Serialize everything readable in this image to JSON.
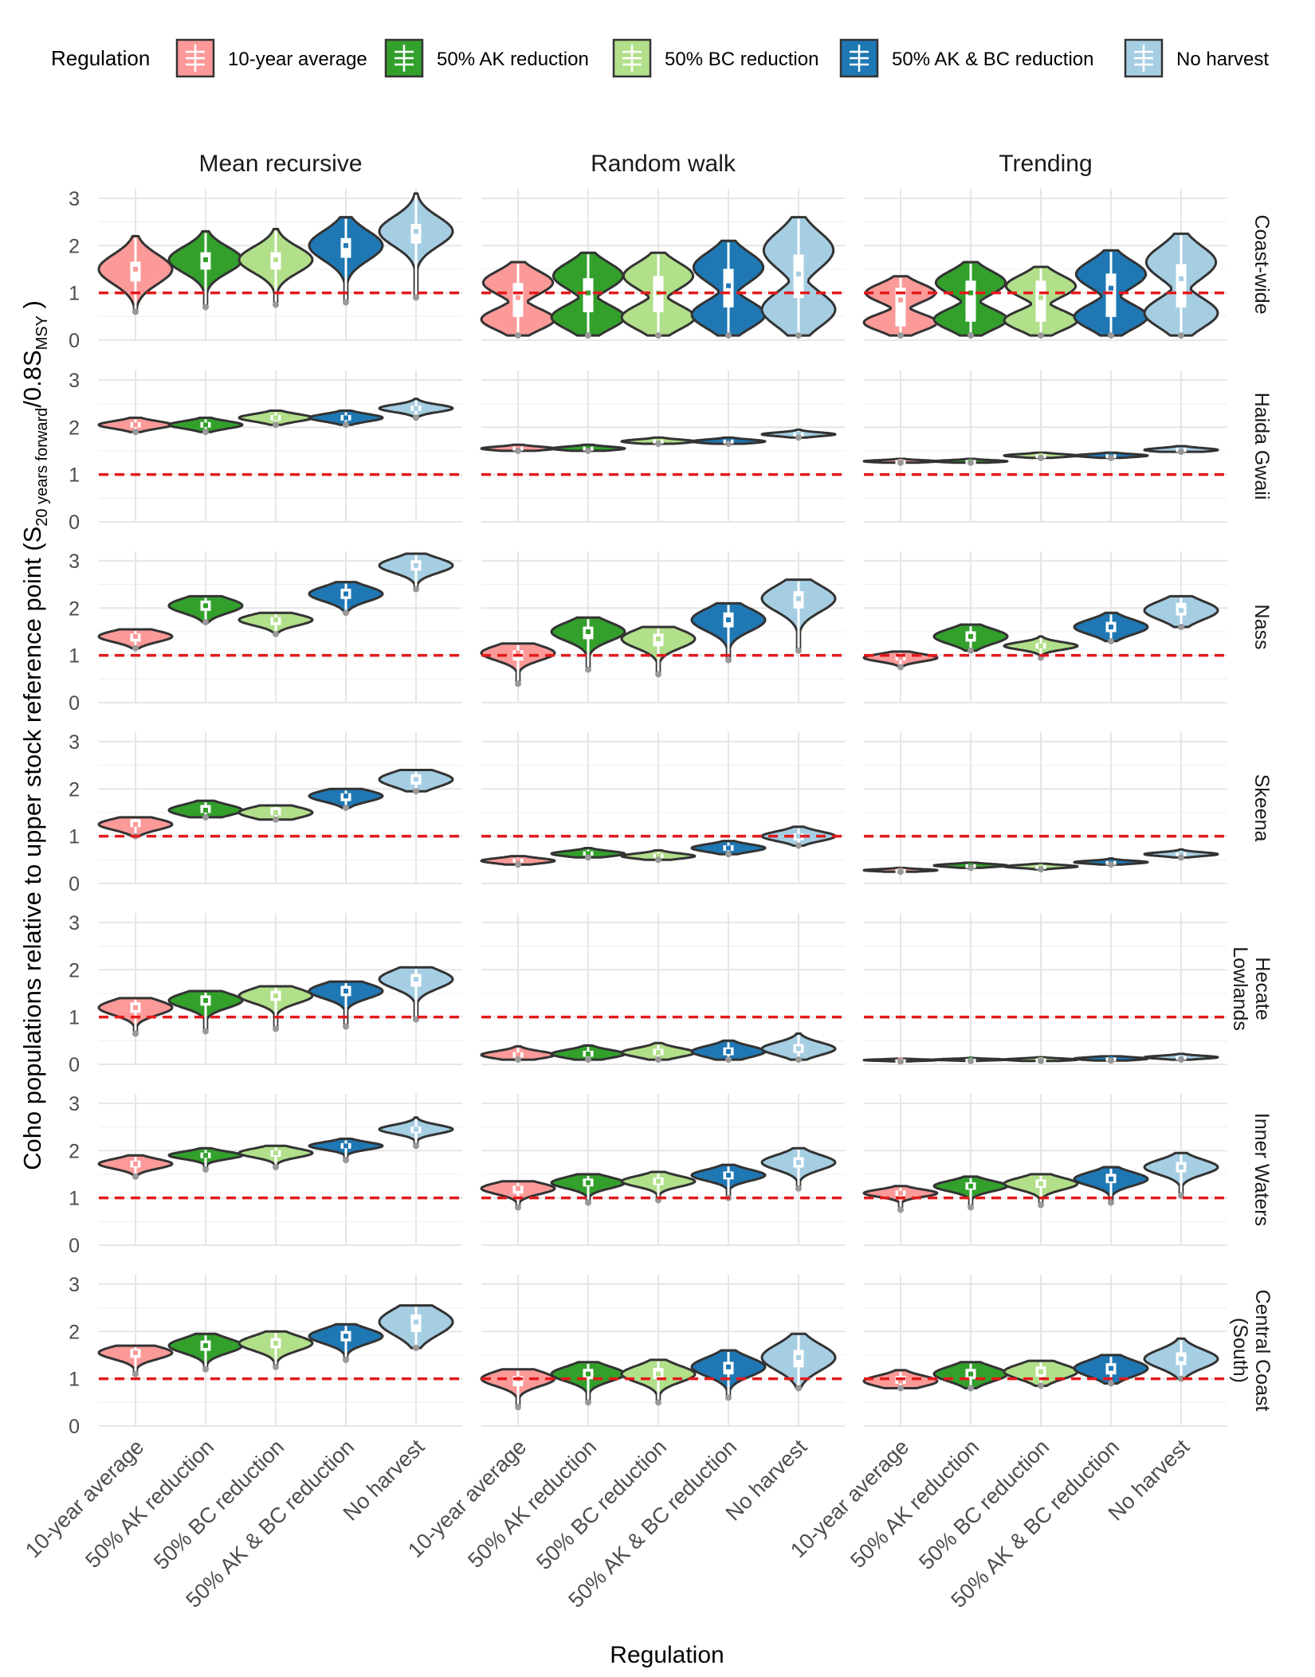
{
  "chart_data": {
    "type": "violin",
    "ylabel": "Coho populations relative to upper stock reference point (S",
    "ylabel_sub1": "20 years forward",
    "ylabel_mid": "/0.8S",
    "ylabel_sub2": "MSY",
    "ylabel_end": " )",
    "xlabel": "Regulation",
    "legend": {
      "title": "Regulation",
      "position": "top",
      "entries": [
        {
          "label": "10-year average",
          "color": "#FB9A99"
        },
        {
          "label": "50% AK reduction",
          "color": "#33A02C"
        },
        {
          "label": "50% BC reduction",
          "color": "#B2DF8A"
        },
        {
          "label": "50% AK & BC reduction",
          "color": "#1F78B4"
        },
        {
          "label": "No harvest",
          "color": "#A6CEE3"
        }
      ]
    },
    "categories": [
      "10-year average",
      "50% AK reduction",
      "50% BC reduction",
      "50% AK & BC reduction",
      "No harvest"
    ],
    "columns": [
      "Mean recursive",
      "Random walk",
      "Trending"
    ],
    "rows": [
      "Coast-wide",
      "Haida Gwaii",
      "Nass",
      "Skeena",
      "Hecate Lowlands",
      "Inner Waters",
      "Central Coast (South)"
    ],
    "row_labels": [
      [
        "Coast-wide"
      ],
      [
        "Haida Gwaii"
      ],
      [
        "Nass"
      ],
      [
        "Skeena"
      ],
      [
        "Hecate",
        "Lowlands"
      ],
      [
        "Inner Waters"
      ],
      [
        "Central Coast",
        "(South)"
      ]
    ],
    "y_ticks": [
      "0",
      "1",
      "2",
      "3"
    ],
    "ylim": [
      0,
      3.2
    ],
    "reference_line": 1,
    "reference_color": "#E31A1C",
    "grid": true,
    "violins_note": "each violin: min, q1, median, q3, max",
    "panels": [
      [
        [
          [
            0.6,
            1.25,
            1.5,
            1.65,
            2.2
          ],
          [
            0.7,
            1.5,
            1.7,
            1.85,
            2.3
          ],
          [
            0.75,
            1.5,
            1.7,
            1.85,
            2.35
          ],
          [
            0.8,
            1.75,
            2.0,
            2.15,
            2.6
          ],
          [
            0.9,
            2.05,
            2.3,
            2.45,
            3.1
          ]
        ],
        [
          [
            0.1,
            0.5,
            0.9,
            1.2,
            1.65
          ],
          [
            0.1,
            0.6,
            1.0,
            1.3,
            1.85
          ],
          [
            0.1,
            0.6,
            1.0,
            1.35,
            1.85
          ],
          [
            0.1,
            0.7,
            1.15,
            1.5,
            2.1
          ],
          [
            0.1,
            0.9,
            1.4,
            1.8,
            2.6
          ]
        ],
        [
          [
            0.1,
            0.3,
            0.85,
            1.1,
            1.35
          ],
          [
            0.1,
            0.4,
            1.0,
            1.25,
            1.65
          ],
          [
            0.1,
            0.4,
            0.9,
            1.25,
            1.55
          ],
          [
            0.1,
            0.5,
            1.1,
            1.4,
            1.9
          ],
          [
            0.1,
            0.7,
            1.3,
            1.6,
            2.25
          ]
        ]
      ],
      [
        [
          [
            1.9,
            2.0,
            2.05,
            2.1,
            2.2
          ],
          [
            1.9,
            2.0,
            2.05,
            2.1,
            2.2
          ],
          [
            2.05,
            2.15,
            2.2,
            2.25,
            2.35
          ],
          [
            2.05,
            2.15,
            2.2,
            2.25,
            2.35
          ],
          [
            2.2,
            2.35,
            2.4,
            2.45,
            2.6
          ]
        ],
        [
          [
            1.5,
            1.53,
            1.55,
            1.58,
            1.63
          ],
          [
            1.5,
            1.53,
            1.55,
            1.58,
            1.63
          ],
          [
            1.65,
            1.68,
            1.7,
            1.73,
            1.78
          ],
          [
            1.65,
            1.68,
            1.7,
            1.73,
            1.78
          ],
          [
            1.78,
            1.83,
            1.85,
            1.88,
            1.95
          ]
        ],
        [
          [
            1.25,
            1.27,
            1.28,
            1.3,
            1.33
          ],
          [
            1.25,
            1.27,
            1.28,
            1.3,
            1.33
          ],
          [
            1.35,
            1.38,
            1.4,
            1.42,
            1.46
          ],
          [
            1.35,
            1.38,
            1.4,
            1.42,
            1.46
          ],
          [
            1.48,
            1.5,
            1.52,
            1.55,
            1.6
          ]
        ]
      ],
      [
        [
          [
            1.15,
            1.3,
            1.4,
            1.45,
            1.55
          ],
          [
            1.7,
            1.95,
            2.05,
            2.15,
            2.25
          ],
          [
            1.45,
            1.65,
            1.75,
            1.8,
            1.9
          ],
          [
            1.9,
            2.2,
            2.3,
            2.4,
            2.55
          ],
          [
            2.4,
            2.8,
            2.9,
            3.0,
            3.15
          ]
        ],
        [
          [
            0.4,
            0.9,
            1.05,
            1.1,
            1.25
          ],
          [
            0.7,
            1.35,
            1.5,
            1.6,
            1.8
          ],
          [
            0.6,
            1.2,
            1.35,
            1.45,
            1.6
          ],
          [
            0.9,
            1.6,
            1.75,
            1.9,
            2.1
          ],
          [
            1.1,
            2.0,
            2.2,
            2.35,
            2.6
          ]
        ],
        [
          [
            0.75,
            0.9,
            0.95,
            1.0,
            1.08
          ],
          [
            1.1,
            1.3,
            1.4,
            1.5,
            1.65
          ],
          [
            0.95,
            1.15,
            1.2,
            1.25,
            1.4
          ],
          [
            1.3,
            1.5,
            1.6,
            1.7,
            1.9
          ],
          [
            1.6,
            1.85,
            1.95,
            2.1,
            2.25
          ]
        ]
      ],
      [
        [
          [
            1.0,
            1.2,
            1.25,
            1.35,
            1.4
          ],
          [
            1.4,
            1.5,
            1.55,
            1.65,
            1.75
          ],
          [
            1.35,
            1.45,
            1.5,
            1.6,
            1.65
          ],
          [
            1.6,
            1.75,
            1.85,
            1.9,
            2.0
          ],
          [
            1.95,
            2.1,
            2.2,
            2.3,
            2.4
          ]
        ],
        [
          [
            0.4,
            0.45,
            0.48,
            0.52,
            0.58
          ],
          [
            0.55,
            0.6,
            0.63,
            0.67,
            0.75
          ],
          [
            0.5,
            0.55,
            0.58,
            0.62,
            0.7
          ],
          [
            0.62,
            0.7,
            0.75,
            0.8,
            0.9
          ],
          [
            0.8,
            0.92,
            1.0,
            1.05,
            1.2
          ]
        ],
        [
          [
            0.25,
            0.27,
            0.28,
            0.3,
            0.33
          ],
          [
            0.33,
            0.36,
            0.38,
            0.4,
            0.44
          ],
          [
            0.3,
            0.34,
            0.36,
            0.38,
            0.42
          ],
          [
            0.4,
            0.43,
            0.45,
            0.47,
            0.53
          ],
          [
            0.55,
            0.6,
            0.62,
            0.65,
            0.72
          ]
        ]
      ],
      [
        [
          [
            0.65,
            1.1,
            1.2,
            1.3,
            1.4
          ],
          [
            0.7,
            1.25,
            1.35,
            1.45,
            1.55
          ],
          [
            0.75,
            1.35,
            1.45,
            1.55,
            1.65
          ],
          [
            0.8,
            1.45,
            1.55,
            1.65,
            1.75
          ],
          [
            0.95,
            1.65,
            1.8,
            1.9,
            2.05
          ]
        ],
        [
          [
            0.1,
            0.15,
            0.2,
            0.25,
            0.38
          ],
          [
            0.1,
            0.17,
            0.22,
            0.28,
            0.4
          ],
          [
            0.1,
            0.2,
            0.25,
            0.32,
            0.45
          ],
          [
            0.1,
            0.2,
            0.27,
            0.35,
            0.5
          ],
          [
            0.1,
            0.25,
            0.33,
            0.42,
            0.65
          ]
        ],
        [
          [
            0.06,
            0.08,
            0.09,
            0.1,
            0.12
          ],
          [
            0.07,
            0.09,
            0.1,
            0.11,
            0.14
          ],
          [
            0.07,
            0.09,
            0.1,
            0.12,
            0.15
          ],
          [
            0.08,
            0.1,
            0.12,
            0.14,
            0.17
          ],
          [
            0.1,
            0.13,
            0.15,
            0.17,
            0.22
          ]
        ]
      ],
      [
        [
          [
            1.45,
            1.65,
            1.72,
            1.78,
            1.9
          ],
          [
            1.6,
            1.85,
            1.9,
            1.95,
            2.05
          ],
          [
            1.65,
            1.88,
            1.95,
            2.0,
            2.1
          ],
          [
            1.8,
            2.05,
            2.1,
            2.15,
            2.25
          ],
          [
            2.1,
            2.38,
            2.45,
            2.5,
            2.7
          ]
        ],
        [
          [
            0.8,
            1.1,
            1.2,
            1.25,
            1.35
          ],
          [
            0.9,
            1.25,
            1.32,
            1.4,
            1.5
          ],
          [
            0.95,
            1.28,
            1.35,
            1.42,
            1.55
          ],
          [
            1.0,
            1.4,
            1.48,
            1.55,
            1.7
          ],
          [
            1.2,
            1.65,
            1.75,
            1.85,
            2.05
          ]
        ],
        [
          [
            0.75,
            1.05,
            1.1,
            1.15,
            1.25
          ],
          [
            0.8,
            1.18,
            1.25,
            1.32,
            1.45
          ],
          [
            0.85,
            1.22,
            1.3,
            1.38,
            1.5
          ],
          [
            0.9,
            1.32,
            1.4,
            1.5,
            1.65
          ],
          [
            1.05,
            1.55,
            1.65,
            1.75,
            1.95
          ]
        ]
      ],
      [
        [
          [
            1.1,
            1.45,
            1.55,
            1.62,
            1.7
          ],
          [
            1.2,
            1.6,
            1.7,
            1.8,
            1.95
          ],
          [
            1.25,
            1.65,
            1.75,
            1.85,
            2.0
          ],
          [
            1.4,
            1.8,
            1.9,
            2.0,
            2.15
          ],
          [
            1.65,
            2.0,
            2.2,
            2.35,
            2.55
          ]
        ],
        [
          [
            0.4,
            0.85,
            1.0,
            1.05,
            1.2
          ],
          [
            0.5,
            1.0,
            1.1,
            1.2,
            1.35
          ],
          [
            0.5,
            1.0,
            1.1,
            1.22,
            1.4
          ],
          [
            0.6,
            1.1,
            1.25,
            1.35,
            1.6
          ],
          [
            0.8,
            1.25,
            1.45,
            1.6,
            1.95
          ]
        ],
        [
          [
            0.8,
            0.9,
            0.95,
            1.05,
            1.18
          ],
          [
            0.8,
            1.0,
            1.1,
            1.2,
            1.35
          ],
          [
            0.85,
            1.05,
            1.15,
            1.25,
            1.38
          ],
          [
            0.9,
            1.1,
            1.22,
            1.32,
            1.5
          ],
          [
            1.0,
            1.3,
            1.42,
            1.55,
            1.85
          ]
        ]
      ]
    ]
  }
}
